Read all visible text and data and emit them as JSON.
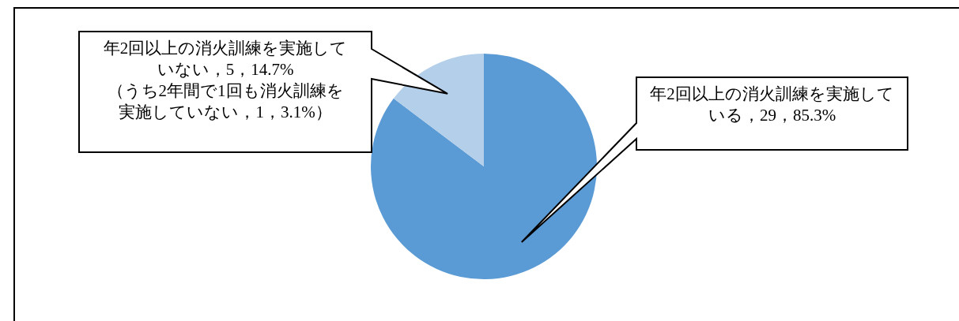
{
  "chart_data": {
    "type": "pie",
    "categories": [
      "年2回以上の消火訓練を実施している",
      "年2回以上の消火訓練を実施していない"
    ],
    "values": [
      29,
      5
    ],
    "value_labels": [
      "，29，85.3%",
      "，5，14.7%"
    ],
    "colors": [
      "#5b9bd5",
      "#b4cfea"
    ],
    "annotations": [
      "（うち2年間で1回も消火訓練を実施していない，1，3.1%）"
    ],
    "legend": false
  }
}
